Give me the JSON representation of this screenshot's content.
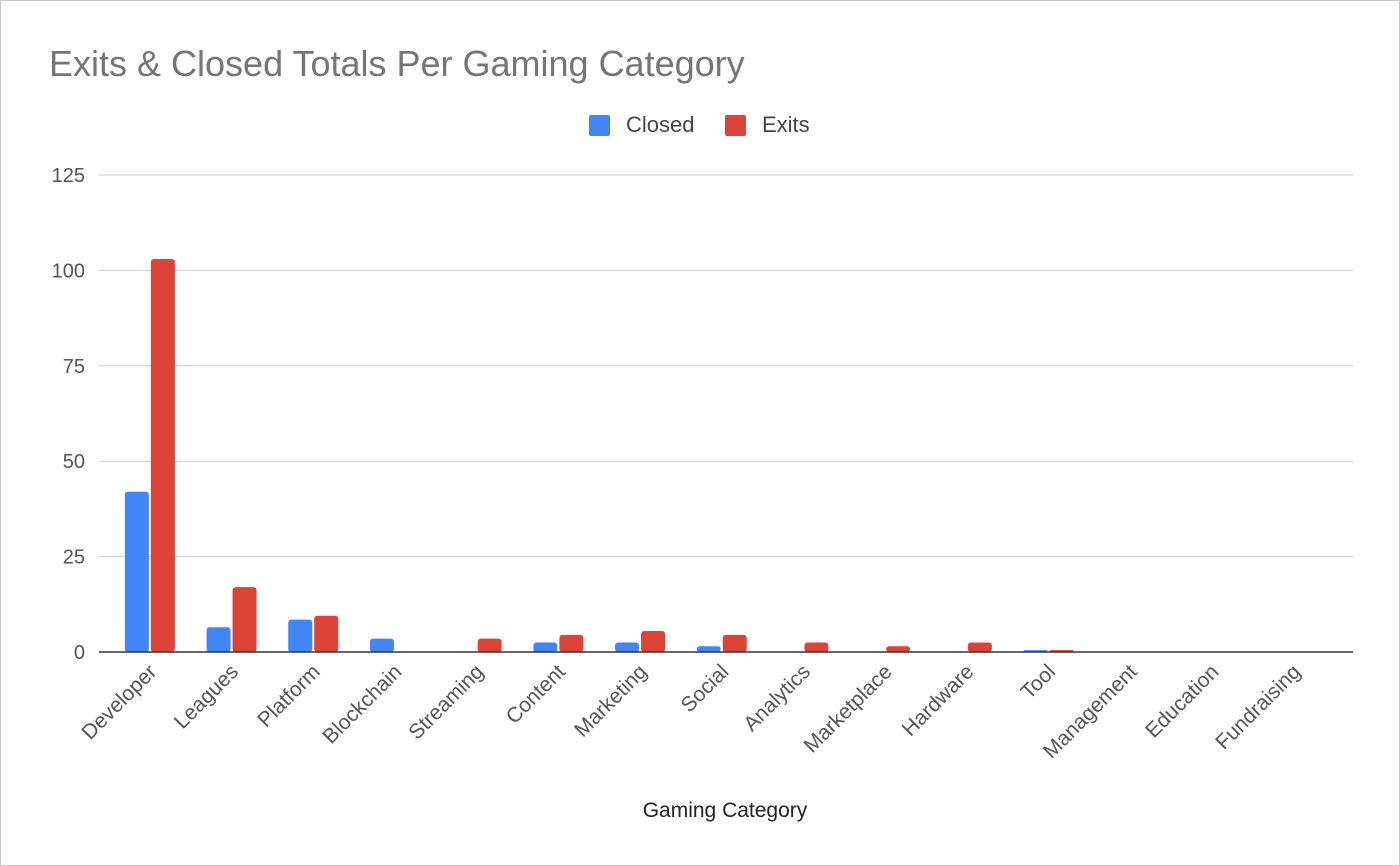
{
  "chart_data": {
    "type": "bar",
    "title": "Exits & Closed Totals Per Gaming Category",
    "xlabel": "Gaming Category",
    "ylabel": "",
    "ylim": [
      0,
      125
    ],
    "yticks": [
      0,
      25,
      50,
      75,
      100,
      125
    ],
    "grid": true,
    "legend_position": "top",
    "categories": [
      "Developer",
      "Leagues",
      "Platform",
      "Blockchain",
      "Streaming",
      "Content",
      "Marketing",
      "Social",
      "Analytics",
      "Marketplace",
      "Hardware",
      "Tool",
      "Management",
      "Education",
      "Fundraising"
    ],
    "series": [
      {
        "name": "Closed",
        "color": "#4285f4",
        "values": [
          42,
          6.5,
          8.5,
          3.5,
          0,
          2.5,
          2.5,
          1.5,
          0,
          0,
          0,
          0.5,
          0,
          0,
          0
        ]
      },
      {
        "name": "Exits",
        "color": "#db4437",
        "values": [
          103,
          17,
          9.5,
          0,
          3.5,
          4.5,
          5.5,
          4.5,
          2.5,
          1.5,
          2.5,
          0.5,
          0,
          0,
          0
        ]
      }
    ]
  }
}
